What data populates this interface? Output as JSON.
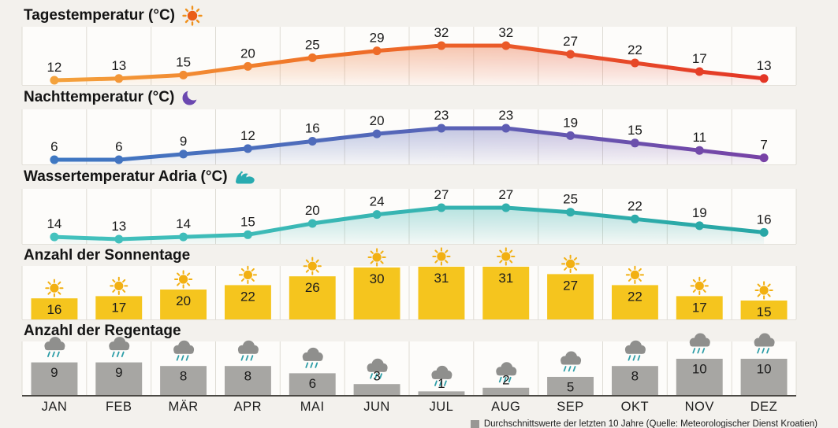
{
  "months": [
    "JAN",
    "FEB",
    "MÄR",
    "APR",
    "MAI",
    "JUN",
    "JUL",
    "AUG",
    "SEP",
    "OKT",
    "NOV",
    "DEZ"
  ],
  "sections": {
    "day": {
      "title": "Tagestemperatur (°C)",
      "icon": "sun-icon"
    },
    "night": {
      "title": "Nachttemperatur (°C)",
      "icon": "moon-icon"
    },
    "water": {
      "title": "Wassertemperatur Adria (°C)",
      "icon": "wave-icon"
    },
    "sunny": {
      "title": "Anzahl der Sonnentage",
      "icon": "sun-bar-icon"
    },
    "rainy": {
      "title": "Anzahl der Regentage",
      "icon": "rain-cloud-icon"
    }
  },
  "chart_data": [
    {
      "type": "line",
      "name": "Tagestemperatur (°C)",
      "categories": [
        "JAN",
        "FEB",
        "MÄR",
        "APR",
        "MAI",
        "JUN",
        "JUL",
        "AUG",
        "SEP",
        "OKT",
        "NOV",
        "DEZ"
      ],
      "values": [
        12,
        13,
        15,
        20,
        25,
        29,
        32,
        32,
        27,
        22,
        17,
        13
      ],
      "ylim": [
        12,
        32
      ],
      "gradient": [
        [
          "0",
          "#f5a83f"
        ],
        [
          "0.4",
          "#ef7127"
        ],
        [
          "0.72",
          "#e84f2a"
        ],
        [
          "1",
          "#e23124"
        ]
      ]
    },
    {
      "type": "line",
      "name": "Nachttemperatur (°C)",
      "categories": [
        "JAN",
        "FEB",
        "MÄR",
        "APR",
        "MAI",
        "JUN",
        "JUL",
        "AUG",
        "SEP",
        "OKT",
        "NOV",
        "DEZ"
      ],
      "values": [
        6,
        6,
        9,
        12,
        16,
        20,
        23,
        23,
        19,
        15,
        11,
        7
      ],
      "ylim": [
        6,
        23
      ],
      "gradient": [
        [
          "0",
          "#3c79c3"
        ],
        [
          "0.5",
          "#5566b8"
        ],
        [
          "1",
          "#7b3fa4"
        ]
      ]
    },
    {
      "type": "line",
      "name": "Wassertemperatur Adria (°C)",
      "categories": [
        "JAN",
        "FEB",
        "MÄR",
        "APR",
        "MAI",
        "JUN",
        "JUL",
        "AUG",
        "SEP",
        "OKT",
        "NOV",
        "DEZ"
      ],
      "values": [
        14,
        13,
        14,
        15,
        20,
        24,
        27,
        27,
        25,
        22,
        19,
        16
      ],
      "ylim": [
        13,
        27
      ],
      "gradient": [
        [
          "0",
          "#45c3bf"
        ],
        [
          "1",
          "#27a5a4"
        ]
      ]
    },
    {
      "type": "bar",
      "name": "Anzahl der Sonnentage",
      "categories": [
        "JAN",
        "FEB",
        "MÄR",
        "APR",
        "MAI",
        "JUN",
        "JUL",
        "AUG",
        "SEP",
        "OKT",
        "NOV",
        "DEZ"
      ],
      "values": [
        16,
        17,
        20,
        22,
        26,
        30,
        31,
        31,
        27,
        22,
        17,
        15
      ],
      "bar_color": "#f5c51e",
      "icon_color": "#f2b012"
    },
    {
      "type": "bar",
      "name": "Anzahl der Regentage",
      "categories": [
        "JAN",
        "FEB",
        "MÄR",
        "APR",
        "MAI",
        "JUN",
        "JUL",
        "AUG",
        "SEP",
        "OKT",
        "NOV",
        "DEZ"
      ],
      "values": [
        9,
        9,
        8,
        8,
        6,
        3,
        1,
        2,
        5,
        8,
        10,
        10
      ],
      "bar_color": "#a7a6a3",
      "icon_color": "#8f8f8d",
      "rain_color": "#2f9ea8"
    }
  ],
  "footer": {
    "legend_label": "Durchschnittswerte der letzten 10 Jahre (Quelle: Meteorologischer Dienst Kroatien)",
    "legend_color": "#989794"
  },
  "colors": {
    "background": "#f3f1ed",
    "chart_bg": "#fdfcfa",
    "grid": "#dedbd4",
    "axis": "#4a4843"
  }
}
